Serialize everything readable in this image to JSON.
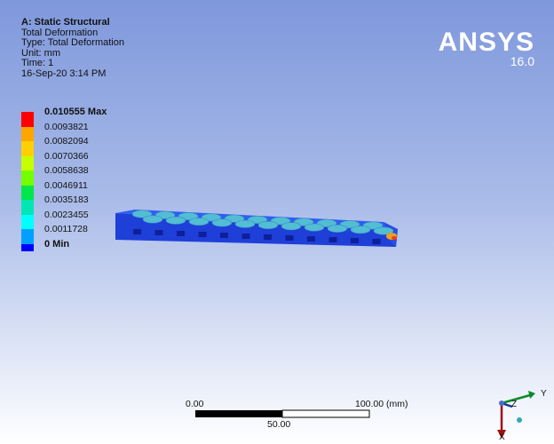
{
  "header": {
    "lines": [
      "A: Static Structural",
      "Total Deformation",
      "Type: Total Deformation",
      "Unit: mm",
      "Time: 1",
      "16-Sep-20 3:14 PM"
    ]
  },
  "brand": {
    "name": "ANSYS",
    "version": "16.0"
  },
  "legend": {
    "labels": [
      "0.010555 Max",
      "0.0093821",
      "0.0082094",
      "0.0070366",
      "0.0058638",
      "0.0046911",
      "0.0035183",
      "0.0023455",
      "0.0011728",
      "0 Min"
    ],
    "colors": [
      "#ff0000",
      "#ffa500",
      "#ffd000",
      "#c6ff00",
      "#74ff00",
      "#00e64b",
      "#00e6b4",
      "#00ffff",
      "#00a0ff",
      "#0000ff"
    ]
  },
  "scale_bar": {
    "left": "0.00",
    "middle": "50.00",
    "right": "100.00 (mm)"
  },
  "triad": {
    "y_label": "Y",
    "z_label": "Z",
    "x_label": "X"
  },
  "colors": {
    "model_base": "#1e3fd8",
    "model_top": "#2e5ff2",
    "bump": "#53bdd3",
    "hot_spot": "#e8a020"
  }
}
